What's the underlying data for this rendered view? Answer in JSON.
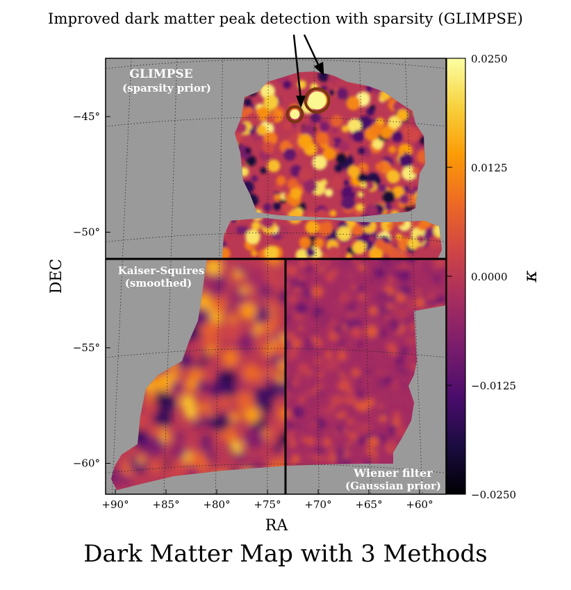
{
  "annotation": "Improved dark matter peak detection with sparsity (GLIMPSE)",
  "figure_title": "Dark Matter Map with 3 Methods",
  "panels": {
    "glimpse": {
      "title": "GLIMPSE",
      "subtitle": "(sparsity prior)"
    },
    "kaiser_squires": {
      "title": "Kaiser-Squires",
      "subtitle": "(smoothed)"
    },
    "wiener": {
      "title": "Wiener filter",
      "subtitle": "(Gaussian prior)"
    }
  },
  "chart_data": {
    "type": "heatmap",
    "xlabel": "RA",
    "ylabel": "DEC",
    "x_ticks": [
      "+90°",
      "+85°",
      "+80°",
      "+75°",
      "+70°",
      "+65°",
      "+60°"
    ],
    "y_ticks": [
      "−45°",
      "−50°",
      "−55°",
      "−60°"
    ],
    "colorbar": {
      "label": "κ",
      "ticks": [
        "0.0250",
        "0.0125",
        "0.0000",
        "−0.0125",
        "−0.0250"
      ],
      "range": [
        -0.025,
        0.025
      ],
      "colormap": "inferno"
    },
    "highlighted_peaks": [
      {
        "ra": 72.3,
        "dec": -44.9,
        "panel": "GLIMPSE"
      },
      {
        "ra": 70.1,
        "dec": -44.3,
        "panel": "GLIMPSE"
      }
    ],
    "grid": true
  },
  "colors": {
    "background_gray": "#9a9a9a",
    "inferno": [
      "#000004",
      "#1b0c41",
      "#4a0c6b",
      "#781c6d",
      "#a52c60",
      "#cf4446",
      "#ed6925",
      "#fb9b06",
      "#f7d13d",
      "#fcffa4"
    ]
  }
}
